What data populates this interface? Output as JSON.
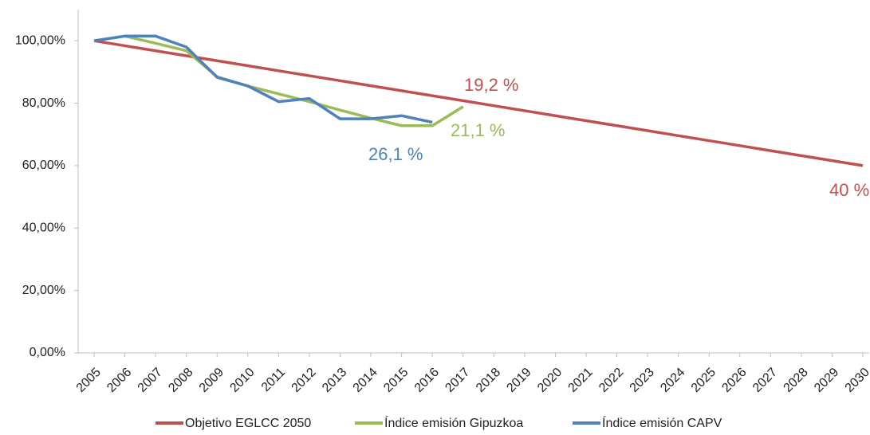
{
  "chart_data": {
    "type": "line",
    "categories": [
      "2005",
      "2006",
      "2007",
      "2008",
      "2009",
      "2010",
      "2011",
      "2012",
      "2013",
      "2014",
      "2015",
      "2016",
      "2017",
      "2018",
      "2019",
      "2020",
      "2021",
      "2022",
      "2023",
      "2024",
      "2025",
      "2026",
      "2027",
      "2028",
      "2029",
      "2030"
    ],
    "series": [
      {
        "name": "Objetivo EGLCC 2050",
        "color": "#c0504d",
        "values": [
          100,
          98.4,
          96.8,
          95.2,
          93.6,
          92,
          90.4,
          88.8,
          87.2,
          85.6,
          84,
          82.4,
          80.8,
          79.2,
          77.6,
          76,
          74.4,
          72.8,
          71.2,
          69.6,
          68,
          66.4,
          64.8,
          63.2,
          61.6,
          60
        ]
      },
      {
        "name": "Índice emisión Gipuzkoa",
        "color": "#9bbb59",
        "values": [
          100,
          101.5,
          99.2,
          96.8,
          88.5,
          85.5,
          83,
          80.5,
          77.8,
          75.2,
          72.8,
          72.8,
          78.9,
          null,
          null,
          null,
          null,
          null,
          null,
          null,
          null,
          null,
          null,
          null,
          null,
          null
        ]
      },
      {
        "name": "Índice emisión CAPV",
        "color": "#4f81bd",
        "values": [
          100,
          101.5,
          101.5,
          98,
          88.3,
          85.5,
          80.5,
          81.5,
          75,
          75,
          76,
          73.9,
          null,
          null,
          null,
          null,
          null,
          null,
          null,
          null,
          null,
          null,
          null,
          null,
          null,
          null
        ]
      }
    ],
    "annotations": [
      {
        "text": "19,2 %",
        "color": "#c0504d"
      },
      {
        "text": "21,1 %",
        "color": "#9bbb59"
      },
      {
        "text": "26,1 %",
        "color": "#4f81bd"
      },
      {
        "text": "40 %",
        "color": "#c0504d"
      }
    ],
    "ylim": [
      0,
      110
    ],
    "yticks": [
      {
        "value": 0,
        "label": "0,00%"
      },
      {
        "value": 20,
        "label": "20,00%"
      },
      {
        "value": 40,
        "label": "40,00%"
      },
      {
        "value": 60,
        "label": "60,00%"
      },
      {
        "value": 80,
        "label": "80,00%"
      },
      {
        "value": 100,
        "label": "100,00%"
      }
    ],
    "legend": "bottom"
  }
}
